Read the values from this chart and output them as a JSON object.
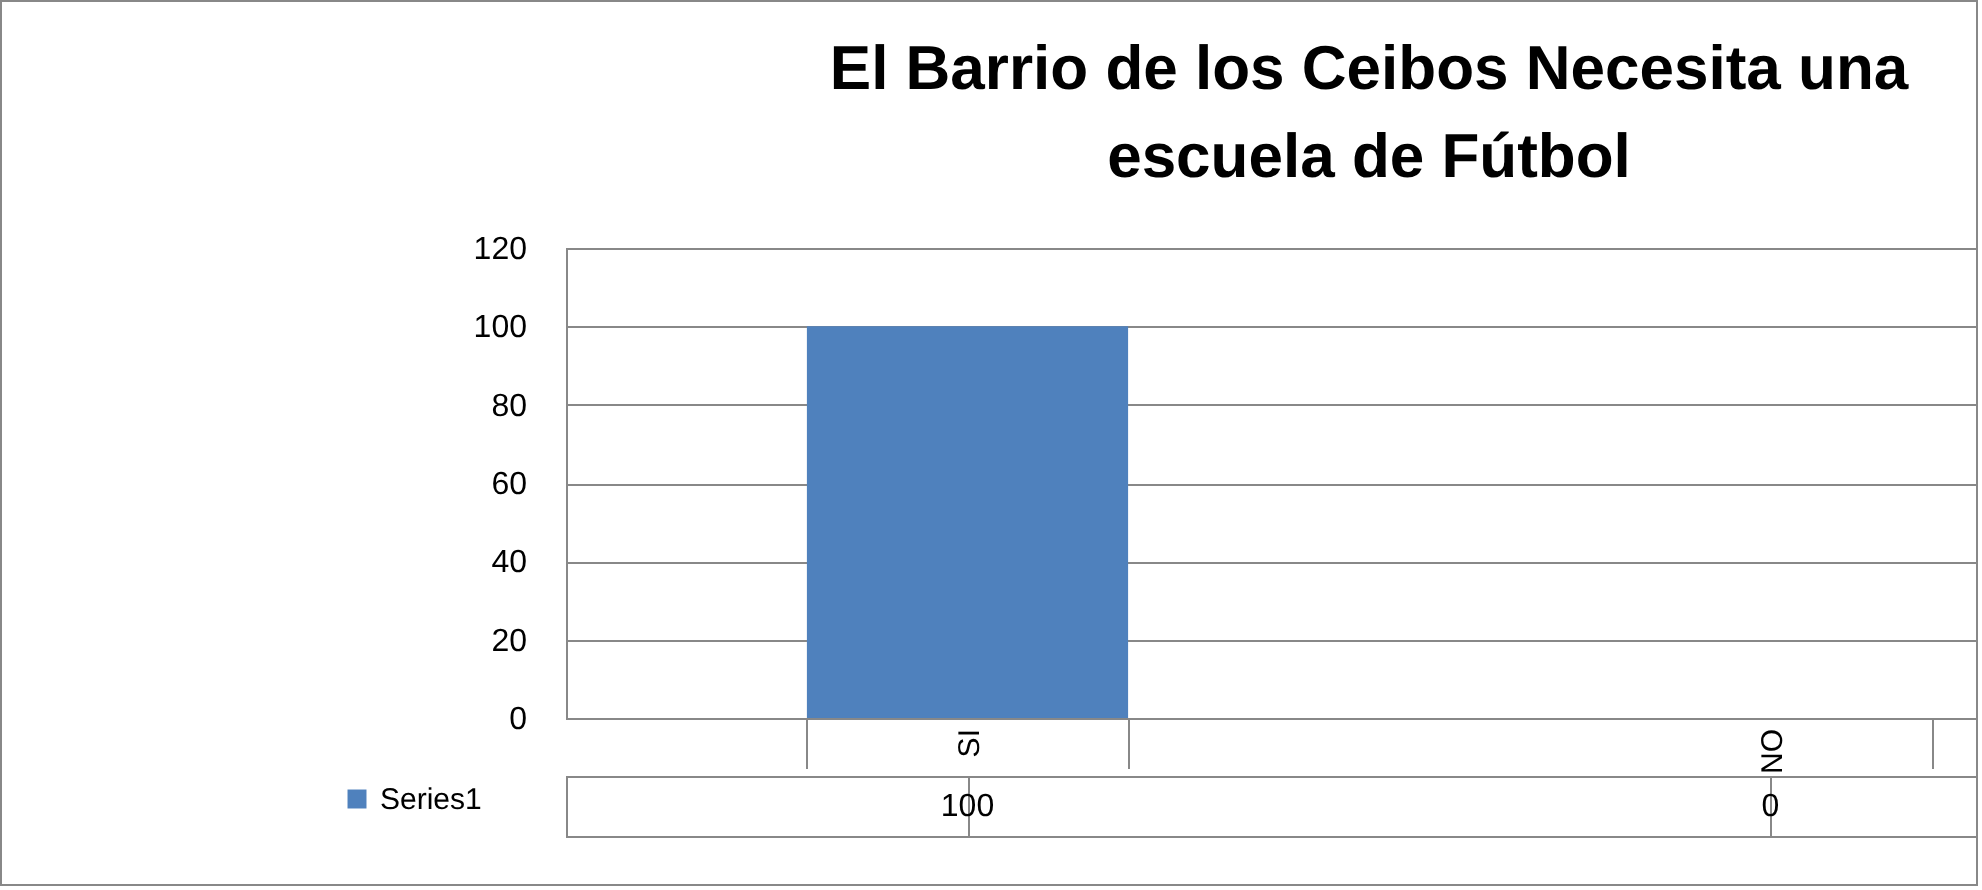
{
  "chart_data": {
    "type": "bar",
    "title": "El Barrio de los Ceibos Necesita una escuela de Fútbol",
    "categories": [
      "SI",
      "NO"
    ],
    "series": [
      {
        "name": "Series1",
        "color": "#4f81bd",
        "values": [
          100,
          0
        ]
      }
    ],
    "ylim": [
      0,
      120
    ],
    "yticks": [
      0,
      20,
      40,
      60,
      80,
      100,
      120
    ],
    "grid": "y",
    "data_labels": true,
    "legend": "bottom left"
  }
}
